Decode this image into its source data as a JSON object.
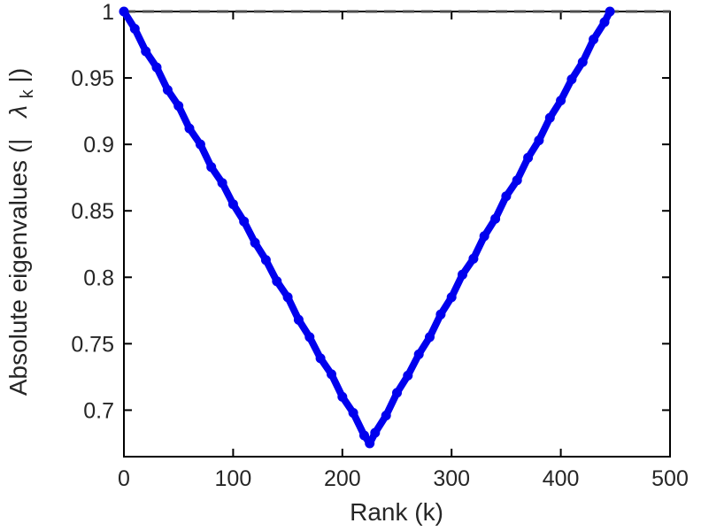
{
  "chart_data": {
    "type": "line",
    "title": "",
    "xlabel": "Rank (k)",
    "ylabel_prefix": "Absolute eigenvalues (|",
    "ylabel_lambda": "λ",
    "ylabel_sub": "k",
    "ylabel_suffix": "|)",
    "xlim": [
      0,
      500
    ],
    "ylim": [
      0.665,
      1.0
    ],
    "x_ticks": [
      0,
      100,
      200,
      300,
      400,
      500
    ],
    "x_tick_labels": [
      "0",
      "100",
      "200",
      "300",
      "400",
      "500"
    ],
    "y_ticks": [
      0.7,
      0.75,
      0.8,
      0.85,
      0.9,
      0.95,
      1
    ],
    "y_tick_labels": [
      "0.7",
      "0.75",
      "0.8",
      "0.85",
      "0.9",
      "0.95",
      "1"
    ],
    "grid": false,
    "box": true,
    "legend_position": "none",
    "axis_color": "#000000",
    "text_color": "#262626",
    "reference_line": {
      "y": 1.0,
      "style": "dashed",
      "color": "#4d4d4d"
    },
    "series": [
      {
        "name": "absolute-eigenvalues",
        "color": "#0000ee",
        "marker": "dot",
        "points": [
          [
            0,
            1.0
          ],
          [
            10,
            0.987
          ],
          [
            20,
            0.97
          ],
          [
            30,
            0.958
          ],
          [
            40,
            0.941
          ],
          [
            50,
            0.929
          ],
          [
            60,
            0.912
          ],
          [
            70,
            0.9
          ],
          [
            80,
            0.883
          ],
          [
            90,
            0.871
          ],
          [
            100,
            0.855
          ],
          [
            110,
            0.842
          ],
          [
            120,
            0.826
          ],
          [
            130,
            0.813
          ],
          [
            140,
            0.797
          ],
          [
            150,
            0.785
          ],
          [
            160,
            0.768
          ],
          [
            170,
            0.755
          ],
          [
            180,
            0.739
          ],
          [
            190,
            0.727
          ],
          [
            200,
            0.71
          ],
          [
            210,
            0.698
          ],
          [
            220,
            0.681
          ],
          [
            225,
            0.675
          ],
          [
            230,
            0.683
          ],
          [
            240,
            0.696
          ],
          [
            250,
            0.713
          ],
          [
            260,
            0.726
          ],
          [
            270,
            0.742
          ],
          [
            280,
            0.755
          ],
          [
            290,
            0.772
          ],
          [
            300,
            0.785
          ],
          [
            310,
            0.802
          ],
          [
            320,
            0.814
          ],
          [
            330,
            0.831
          ],
          [
            340,
            0.844
          ],
          [
            350,
            0.861
          ],
          [
            360,
            0.873
          ],
          [
            370,
            0.89
          ],
          [
            380,
            0.903
          ],
          [
            390,
            0.92
          ],
          [
            400,
            0.933
          ],
          [
            410,
            0.949
          ],
          [
            420,
            0.962
          ],
          [
            430,
            0.979
          ],
          [
            440,
            0.992
          ],
          [
            445,
            1.0
          ]
        ]
      }
    ]
  }
}
